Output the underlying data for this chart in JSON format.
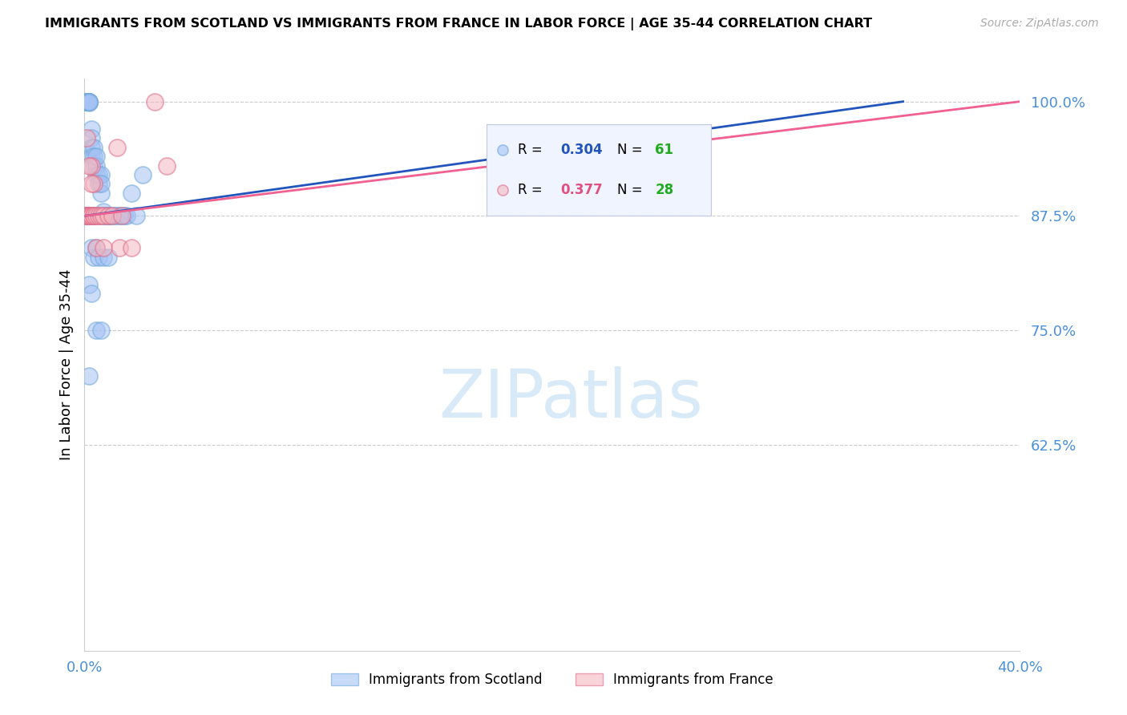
{
  "title": "IMMIGRANTS FROM SCOTLAND VS IMMIGRANTS FROM FRANCE IN LABOR FORCE | AGE 35-44 CORRELATION CHART",
  "source": "Source: ZipAtlas.com",
  "ylabel": "In Labor Force | Age 35-44",
  "scotland_R": 0.304,
  "scotland_N": 61,
  "france_R": 0.377,
  "france_N": 28,
  "scotland_fill": "#a4c2f4",
  "scotland_edge": "#6fa8dc",
  "scotland_line": "#2255bb",
  "france_fill": "#f4b8c1",
  "france_edge": "#e06c8a",
  "france_line": "#f06090",
  "axis_label_color": "#4a90d9",
  "grid_color": "#cccccc",
  "watermark_color": "#d8eaf8",
  "legend_bg": "#f0f4ff",
  "legend_border": "#c0c8e0",
  "scot_R_color": "#2255bb",
  "scot_N_color": "#22aa22",
  "fran_R_color": "#e05080",
  "fran_N_color": "#22aa22",
  "x_min": 0.0,
  "x_max": 0.4,
  "y_min": 0.4,
  "y_max": 1.025,
  "yticks": [
    1.0,
    0.875,
    0.75,
    0.625
  ],
  "ytick_labels": [
    "100.0%",
    "87.5%",
    "75.0%",
    "62.5%"
  ],
  "xticks": [
    0.0,
    0.05,
    0.1,
    0.15,
    0.2,
    0.25,
    0.3,
    0.35,
    0.4
  ],
  "scot_x": [
    0.0005,
    0.001,
    0.001,
    0.001,
    0.0015,
    0.0015,
    0.002,
    0.002,
    0.002,
    0.002,
    0.003,
    0.003,
    0.003,
    0.003,
    0.004,
    0.004,
    0.004,
    0.005,
    0.005,
    0.005,
    0.006,
    0.006,
    0.007,
    0.007,
    0.007,
    0.008,
    0.008,
    0.009,
    0.009,
    0.01,
    0.01,
    0.011,
    0.012,
    0.013,
    0.014,
    0.015,
    0.016,
    0.017,
    0.018,
    0.02,
    0.022,
    0.025,
    0.001,
    0.002,
    0.003,
    0.004,
    0.003,
    0.004,
    0.005,
    0.006,
    0.008,
    0.01,
    0.002,
    0.003,
    0.005,
    0.007,
    0.001,
    0.003,
    0.004,
    0.002,
    0.006
  ],
  "scot_y": [
    1.0,
    1.0,
    1.0,
    1.0,
    1.0,
    1.0,
    1.0,
    1.0,
    0.999,
    1.0,
    0.97,
    0.96,
    0.95,
    0.94,
    0.95,
    0.94,
    0.93,
    0.93,
    0.92,
    0.94,
    0.92,
    0.91,
    0.92,
    0.9,
    0.91,
    0.875,
    0.88,
    0.875,
    0.875,
    0.875,
    0.875,
    0.875,
    0.875,
    0.875,
    0.875,
    0.875,
    0.875,
    0.875,
    0.875,
    0.9,
    0.875,
    0.92,
    0.875,
    0.875,
    0.875,
    0.875,
    0.84,
    0.83,
    0.84,
    0.83,
    0.83,
    0.83,
    0.8,
    0.79,
    0.75,
    0.75,
    0.875,
    0.875,
    0.875,
    0.7,
    0.875
  ],
  "fran_x": [
    0.0005,
    0.001,
    0.001,
    0.002,
    0.002,
    0.003,
    0.003,
    0.004,
    0.004,
    0.005,
    0.006,
    0.007,
    0.008,
    0.01,
    0.012,
    0.014,
    0.003,
    0.004,
    0.005,
    0.001,
    0.002,
    0.003,
    0.015,
    0.02,
    0.03,
    0.035,
    0.016,
    0.008
  ],
  "fran_y": [
    0.875,
    0.875,
    0.875,
    0.875,
    0.875,
    0.875,
    0.875,
    0.875,
    0.875,
    0.875,
    0.875,
    0.875,
    0.875,
    0.875,
    0.875,
    0.95,
    0.93,
    0.91,
    0.84,
    0.96,
    0.93,
    0.91,
    0.84,
    0.84,
    1.0,
    0.93,
    0.875,
    0.84
  ],
  "blue_line_x0": 0.0,
  "blue_line_y0": 0.875,
  "blue_line_x1": 0.35,
  "blue_line_y1": 1.0,
  "pink_line_x0": 0.0,
  "pink_line_y0": 0.875,
  "pink_line_x1": 0.4,
  "pink_line_y1": 1.0
}
